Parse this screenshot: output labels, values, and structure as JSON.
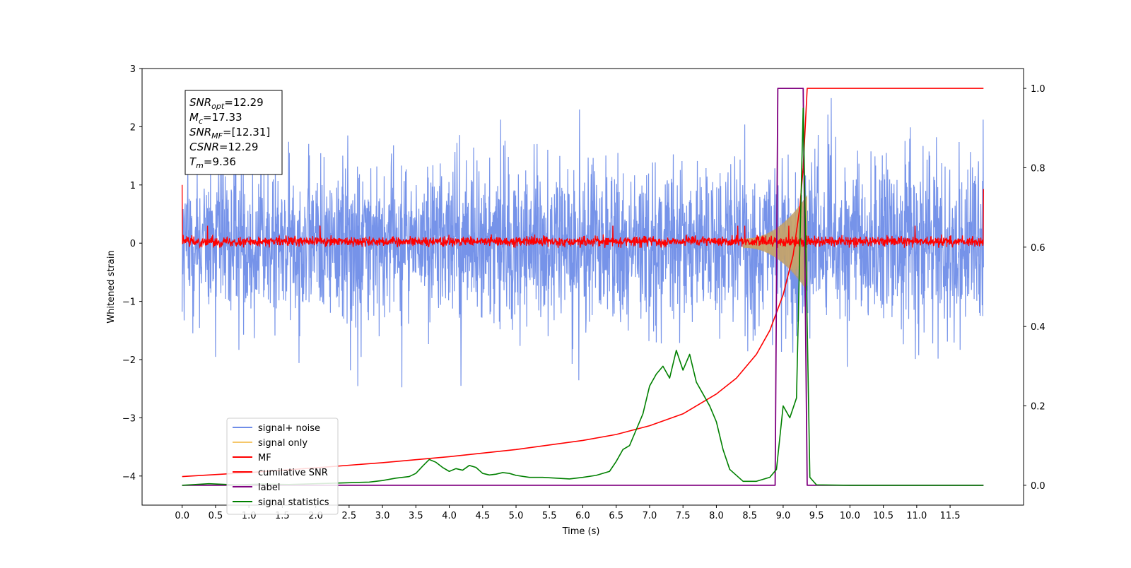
{
  "chart_data": {
    "type": "line",
    "title": "",
    "xlabel": "Time (s)",
    "ylabel": "Whitened strain",
    "xlim": [
      -0.6,
      12.6
    ],
    "ylim": [
      -4.5,
      3.0
    ],
    "y2lim": [
      -0.05,
      1.05
    ],
    "xticks": [
      0.0,
      0.5,
      1.0,
      1.5,
      2.0,
      2.5,
      3.0,
      3.5,
      4.0,
      4.5,
      5.0,
      5.5,
      6.0,
      6.5,
      7.0,
      7.5,
      8.0,
      8.5,
      9.0,
      9.5,
      10.0,
      10.5,
      11.0,
      11.5
    ],
    "xtick_labels": [
      "0.0",
      "0.5",
      "1.0",
      "1.5",
      "2.0",
      "2.5",
      "3.0",
      "3.5",
      "4.0",
      "4.5",
      "5.0",
      "5.5",
      "6.0",
      "6.5",
      "7.0",
      "7.5",
      "8.0",
      "8.5",
      "9.0",
      "9.5",
      "10.0",
      "10.5",
      "11.0",
      "11.5"
    ],
    "yticks": [
      -4,
      -3,
      -2,
      -1,
      0,
      1,
      2,
      3
    ],
    "ytick_labels": [
      "−4",
      "−3",
      "−2",
      "−1",
      "0",
      "1",
      "2",
      "3"
    ],
    "y2ticks": [
      0.0,
      0.2,
      0.4,
      0.6,
      0.8,
      1.0
    ],
    "y2tick_labels": [
      "0.0",
      "0.2",
      "0.4",
      "0.6",
      "0.8",
      "1.0"
    ],
    "grid": false,
    "legend_position": "lower-left",
    "annotation": {
      "lines": [
        {
          "sym": "SNR",
          "sub": "opt",
          "rest": "=12.29"
        },
        {
          "sym": "M",
          "sub": "c",
          "rest": "=17.33"
        },
        {
          "sym": "SNR",
          "sub": "MF",
          "rest": "=[12.31]"
        },
        {
          "sym": "CSNR",
          "sub": "",
          "rest": "=12.29"
        },
        {
          "sym": "T",
          "sub": "m",
          "rest": "=9.36"
        }
      ]
    },
    "series": [
      {
        "name": "signal+ noise",
        "axis": "left",
        "color": "#6f8de8",
        "kind": "noise",
        "x_range": [
          0.0,
          12.0
        ],
        "envelope_low": -1.5,
        "envelope_high": 1.7,
        "spike_min": -2.55,
        "spike_max": 2.6
      },
      {
        "name": "signal only",
        "axis": "left",
        "color": "#f5c76a",
        "kind": "chirp",
        "x_range": [
          8.4,
          9.36
        ],
        "amp_max": 0.75
      },
      {
        "name": "MF",
        "axis": "left",
        "color": "#ff0000",
        "kind": "noise",
        "x_range": [
          0.0,
          12.0
        ],
        "envelope_low": -0.08,
        "envelope_high": 0.15,
        "edge_values": [
          1.0,
          0.93
        ]
      },
      {
        "name": "cumilative SNR",
        "axis": "right",
        "color": "#ff0000",
        "kind": "line",
        "x": [
          0.0,
          1.0,
          2.0,
          3.0,
          4.0,
          5.0,
          6.0,
          6.5,
          7.0,
          7.5,
          8.0,
          8.3,
          8.6,
          8.8,
          9.0,
          9.15,
          9.25,
          9.3,
          9.36,
          9.4,
          10.0,
          11.0,
          12.0
        ],
        "y": [
          0.022,
          0.032,
          0.044,
          0.057,
          0.072,
          0.09,
          0.113,
          0.128,
          0.15,
          0.18,
          0.23,
          0.27,
          0.33,
          0.39,
          0.48,
          0.58,
          0.7,
          0.8,
          1.0,
          1.0,
          1.0,
          1.0,
          1.0
        ]
      },
      {
        "name": "label",
        "axis": "right",
        "color": "#800080",
        "kind": "line",
        "x": [
          0.0,
          8.88,
          8.92,
          9.3,
          9.36,
          12.0
        ],
        "y": [
          0.0,
          0.0,
          1.0,
          1.0,
          0.0,
          0.0
        ]
      },
      {
        "name": "signal statistics",
        "axis": "right",
        "color": "#008000",
        "kind": "line",
        "x": [
          0.0,
          0.4,
          0.8,
          1.2,
          1.6,
          2.0,
          2.4,
          2.8,
          3.0,
          3.2,
          3.4,
          3.5,
          3.6,
          3.7,
          3.8,
          3.9,
          4.0,
          4.1,
          4.2,
          4.3,
          4.4,
          4.5,
          4.6,
          4.7,
          4.8,
          4.9,
          5.0,
          5.2,
          5.4,
          5.6,
          5.8,
          6.0,
          6.2,
          6.4,
          6.5,
          6.6,
          6.7,
          6.8,
          6.9,
          7.0,
          7.1,
          7.2,
          7.3,
          7.4,
          7.5,
          7.6,
          7.7,
          7.8,
          7.9,
          8.0,
          8.1,
          8.2,
          8.4,
          8.6,
          8.8,
          8.9,
          9.0,
          9.1,
          9.2,
          9.25,
          9.3,
          9.35,
          9.4,
          9.5,
          10.0,
          11.0,
          12.0
        ],
        "y": [
          0.0,
          0.004,
          0.001,
          0.003,
          0.002,
          0.004,
          0.006,
          0.008,
          0.012,
          0.018,
          0.022,
          0.03,
          0.048,
          0.065,
          0.058,
          0.045,
          0.035,
          0.042,
          0.038,
          0.05,
          0.045,
          0.03,
          0.026,
          0.028,
          0.032,
          0.03,
          0.025,
          0.02,
          0.02,
          0.018,
          0.016,
          0.02,
          0.025,
          0.035,
          0.06,
          0.09,
          0.1,
          0.14,
          0.18,
          0.25,
          0.28,
          0.3,
          0.27,
          0.34,
          0.29,
          0.33,
          0.26,
          0.23,
          0.2,
          0.16,
          0.09,
          0.04,
          0.01,
          0.01,
          0.02,
          0.04,
          0.2,
          0.17,
          0.22,
          0.6,
          0.95,
          0.5,
          0.02,
          0.001,
          0.0,
          0.0,
          0.0
        ]
      }
    ]
  }
}
